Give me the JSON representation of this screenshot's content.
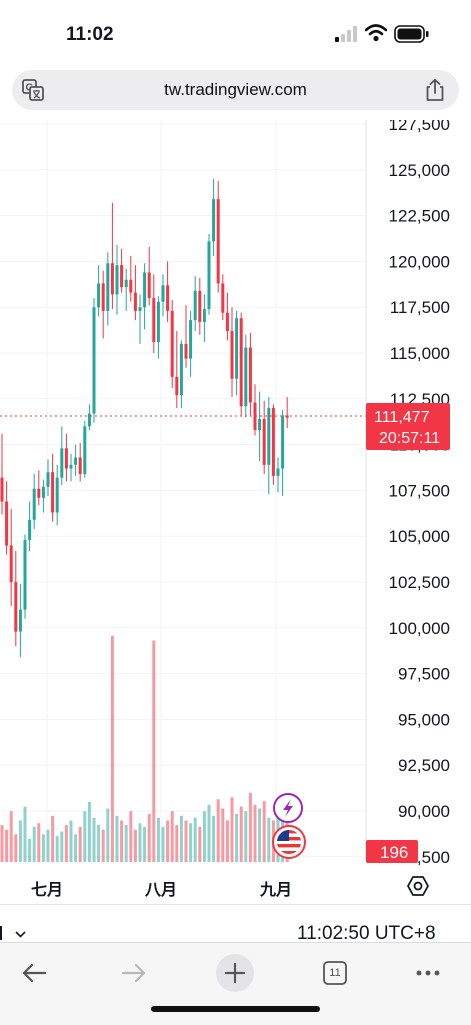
{
  "status_bar": {
    "time": "11:02"
  },
  "browser": {
    "url": "tw.tradingview.com",
    "tab_count": "11"
  },
  "chart_data": {
    "type": "candlestick",
    "price_axis": [
      "127,500",
      "125,000",
      "122,500",
      "120,000",
      "117,500",
      "115,000",
      "112,500",
      "110,000",
      "107,500",
      "105,000",
      "102,500",
      "100,000",
      "97,500",
      "95,000",
      "92,500",
      "90,000",
      "87,500"
    ],
    "time_axis": [
      "七月",
      "八月",
      "九月"
    ],
    "last_price": "111,477",
    "countdown": "20:57:11",
    "volume_label": "196",
    "ylim": [
      87500,
      127500
    ],
    "up_color": "#26a69a",
    "down_color": "#f23645",
    "candles": [
      [
        108200,
        110600,
        106200,
        106900
      ],
      [
        106900,
        108000,
        104000,
        104500
      ],
      [
        104500,
        106500,
        101200,
        102500
      ],
      [
        102500,
        104200,
        99000,
        99800
      ],
      [
        99800,
        102400,
        98400,
        101000
      ],
      [
        101000,
        105100,
        100500,
        104800
      ],
      [
        104800,
        106900,
        104200,
        105900
      ],
      [
        105900,
        108400,
        105400,
        107600
      ],
      [
        107600,
        108600,
        106700,
        107100
      ],
      [
        107100,
        108100,
        106300,
        107700
      ],
      [
        107700,
        109200,
        107200,
        108500
      ],
      [
        108500,
        109500,
        105800,
        106300
      ],
      [
        106300,
        108900,
        105600,
        108200
      ],
      [
        108200,
        111000,
        107800,
        109800
      ],
      [
        109800,
        110600,
        108000,
        108700
      ],
      [
        108700,
        109500,
        108000,
        108900
      ],
      [
        108900,
        110000,
        108300,
        109300
      ],
      [
        109300,
        110100,
        108000,
        108400
      ],
      [
        108400,
        111300,
        108200,
        111000
      ],
      [
        111000,
        112200,
        110800,
        111700
      ],
      [
        111700,
        118000,
        111200,
        117500
      ],
      [
        117500,
        119800,
        117000,
        118800
      ],
      [
        118800,
        119500,
        115800,
        117300
      ],
      [
        117300,
        120500,
        116500,
        119900
      ],
      [
        119900,
        123200,
        117400,
        118200
      ],
      [
        118200,
        120900,
        117100,
        119800
      ],
      [
        119800,
        120700,
        118300,
        118600
      ],
      [
        118600,
        119600,
        117300,
        119000
      ],
      [
        119000,
        120300,
        117800,
        118300
      ],
      [
        118300,
        119800,
        116800,
        117300
      ],
      [
        117300,
        118200,
        115500,
        117500
      ],
      [
        117500,
        119900,
        116300,
        119400
      ],
      [
        119400,
        120800,
        117600,
        118000
      ],
      [
        118000,
        119300,
        115000,
        115600
      ],
      [
        115600,
        118100,
        114700,
        117800
      ],
      [
        117800,
        119300,
        117000,
        118700
      ],
      [
        118700,
        120000,
        116700,
        117300
      ],
      [
        117300,
        117900,
        113100,
        113700
      ],
      [
        113700,
        116200,
        112000,
        112700
      ],
      [
        112700,
        115700,
        112000,
        115500
      ],
      [
        115500,
        117600,
        114200,
        114700
      ],
      [
        114700,
        117300,
        113700,
        116800
      ],
      [
        116800,
        119200,
        116200,
        118400
      ],
      [
        118400,
        119100,
        116000,
        116700
      ],
      [
        116700,
        118200,
        115600,
        117400
      ],
      [
        117400,
        121500,
        117100,
        121100
      ],
      [
        121100,
        124500,
        120300,
        123400
      ],
      [
        123400,
        124400,
        118300,
        118800
      ],
      [
        118800,
        119300,
        116800,
        117200
      ],
      [
        117200,
        118300,
        115700,
        116200
      ],
      [
        116200,
        117500,
        112600,
        113600
      ],
      [
        113600,
        117300,
        112700,
        116900
      ],
      [
        116900,
        117200,
        111600,
        112100
      ],
      [
        112100,
        116000,
        111500,
        115300
      ],
      [
        115300,
        116100,
        111600,
        112300
      ],
      [
        112300,
        113300,
        110500,
        110800
      ],
      [
        110800,
        112900,
        109100,
        111400
      ],
      [
        111400,
        112400,
        108400,
        108900
      ],
      [
        108900,
        112600,
        107300,
        112000
      ],
      [
        112000,
        112200,
        107800,
        108300
      ],
      [
        108300,
        109300,
        107400,
        108700
      ],
      [
        108700,
        111900,
        107200,
        111600
      ],
      [
        111600,
        112600,
        110900,
        111477
      ]
    ],
    "volumes": [
      40,
      35,
      55,
      30,
      45,
      60,
      25,
      38,
      42,
      30,
      35,
      50,
      28,
      33,
      40,
      45,
      30,
      38,
      55,
      65,
      48,
      40,
      35,
      58,
      245,
      50,
      45,
      40,
      55,
      35,
      42,
      38,
      52,
      240,
      48,
      38,
      45,
      55,
      40,
      50,
      45,
      42,
      48,
      38,
      55,
      62,
      50,
      68,
      58,
      45,
      70,
      52,
      60,
      55,
      75,
      62,
      58,
      66,
      48,
      45,
      60,
      58,
      52
    ]
  }
}
